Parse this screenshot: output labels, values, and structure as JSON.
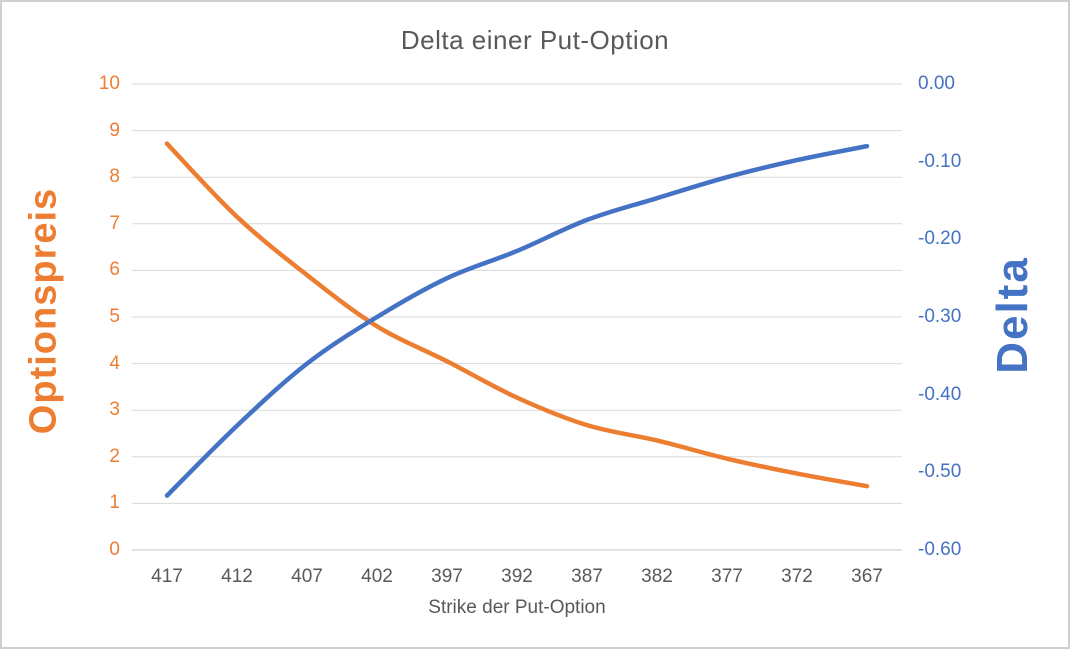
{
  "chart_data": {
    "type": "line",
    "title": "Delta einer Put-Option",
    "xlabel": "Strike der Put-Option",
    "ylabel_left": "Optionspreis",
    "ylabel_right": "Delta",
    "categories": [
      "417",
      "412",
      "407",
      "402",
      "397",
      "392",
      "387",
      "382",
      "377",
      "372",
      "367"
    ],
    "series": [
      {
        "name": "Optionspreis",
        "axis": "left",
        "color": "#ED7D31",
        "values": [
          8.72,
          7.15,
          5.9,
          4.8,
          4.05,
          3.27,
          2.68,
          2.35,
          1.96,
          1.64,
          1.37
        ]
      },
      {
        "name": "Delta",
        "axis": "right",
        "color": "#4472C4",
        "values": [
          -0.53,
          -0.44,
          -0.36,
          -0.3,
          -0.25,
          -0.215,
          -0.175,
          -0.147,
          -0.12,
          -0.098,
          -0.08
        ]
      }
    ],
    "left_axis": {
      "min": 0,
      "max": 10,
      "tick_labels": [
        "10",
        "9",
        "8",
        "7",
        "6",
        "5",
        "4",
        "3",
        "2",
        "1",
        "0"
      ],
      "color": "#ED7D31"
    },
    "right_axis": {
      "min": -0.6,
      "max": 0.0,
      "tick_labels": [
        "0.00",
        "-0.10",
        "-0.20",
        "-0.30",
        "-0.40",
        "-0.50",
        "-0.60"
      ],
      "color": "#4472C4"
    },
    "grid": true,
    "legend": "none",
    "gridline_color": "#D9D9D9",
    "axis_line_color": "#C6C6C6",
    "text_color": "#595959",
    "frame_border_color": "#CFCFCF"
  }
}
